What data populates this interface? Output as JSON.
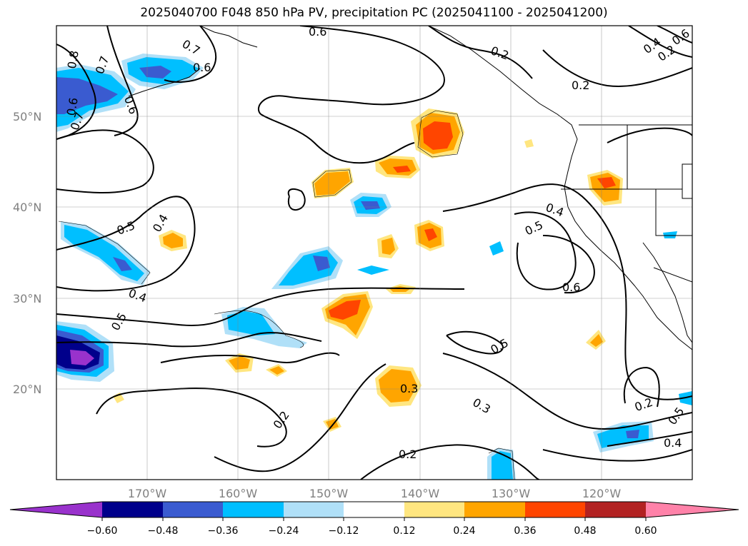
{
  "title": "2025040700 F048 850 hPa PV, precipitation PC (2025041100 - 2025041200)",
  "map": {
    "projection": "cylindrical",
    "lon_range": [
      -180,
      -110
    ],
    "lat_range": [
      10,
      60
    ],
    "lon_labels": [
      "170°W",
      "160°W",
      "150°W",
      "140°W",
      "130°W",
      "120°W"
    ],
    "lat_labels": [
      "50°N",
      "40°N",
      "30°N",
      "20°N"
    ],
    "grid": true,
    "coastlines": true
  },
  "contour_labels": [
    "0.6",
    "0.7",
    "0.6",
    "0.8",
    "0.7",
    "0.6",
    "0.6",
    "0.7",
    "0.2",
    "0.2",
    "0.5",
    "0.4",
    "0.4",
    "0.5",
    "0.4",
    "0.5",
    "0.6",
    "0.5",
    "0.3",
    "0.3",
    "0.2",
    "0.2",
    "0.2",
    "0.5",
    "0.4",
    "0.2",
    "0.4",
    "0.6"
  ],
  "colorbar": {
    "ticks": [
      "−0.60",
      "−0.48",
      "−0.36",
      "−0.24",
      "−0.12",
      "0.12",
      "0.24",
      "0.36",
      "0.48",
      "0.60"
    ],
    "colors": [
      "#9932cc",
      "#00008b",
      "#3a5bd0",
      "#00bfff",
      "#b0e0f8",
      "#ffffff",
      "#ffe680",
      "#ffa500",
      "#ff4500",
      "#b22222",
      "#ff82a9"
    ],
    "extend": "both"
  },
  "colors": {
    "blue_light": "#b0e0f8",
    "blue": "#00bfff",
    "blue_mid": "#3a5bd0",
    "navy": "#00008b",
    "purple": "#9932cc",
    "yellow": "#ffe680",
    "orange": "#ffa500",
    "red_orange": "#ff4500"
  }
}
